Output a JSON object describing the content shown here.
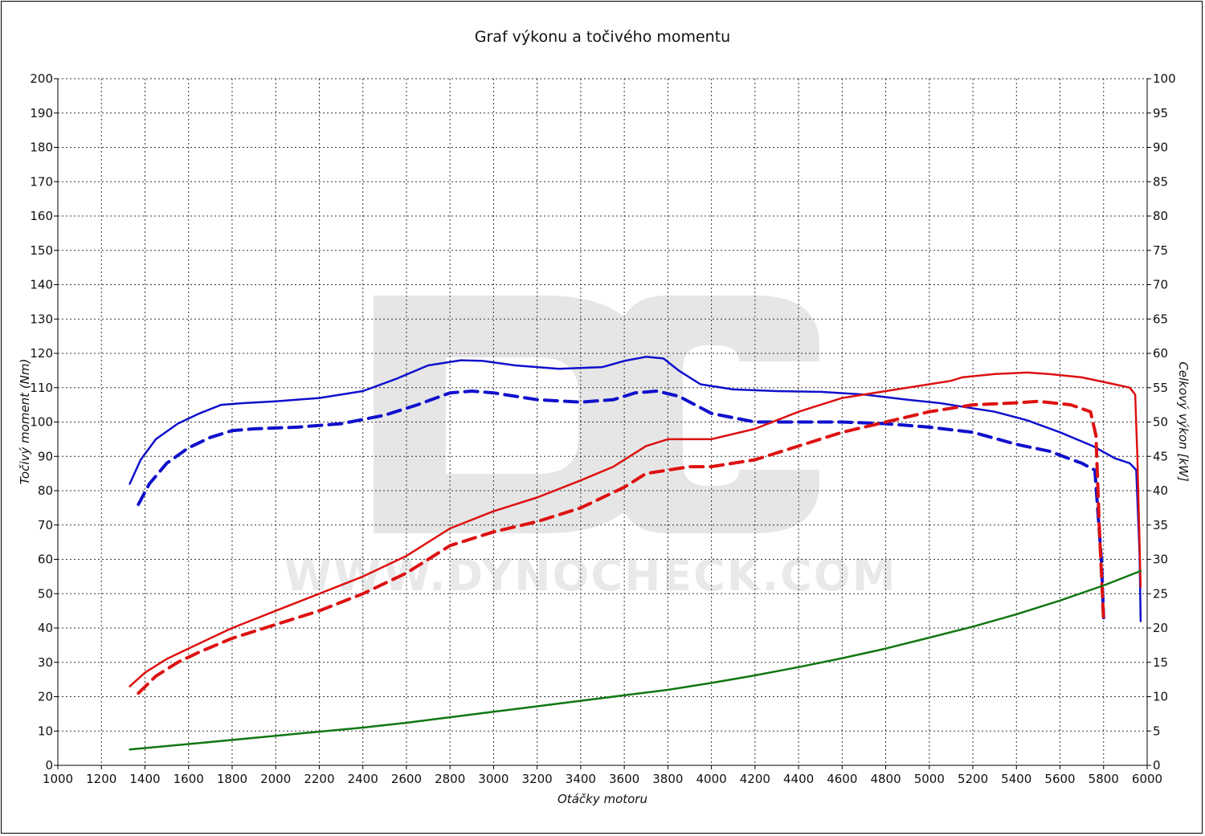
{
  "chart_data": {
    "type": "line",
    "title": "Graf výkonu a točivého momentu",
    "xlabel": "Otáčky motoru",
    "ylabel_left": "Točivý moment (Nm)",
    "ylabel_right": "Celkový výkon [kW]",
    "watermark": {
      "logo": "DC",
      "text": "WWW.DYNOCHECK.COM"
    },
    "xlim": [
      1000,
      6000
    ],
    "ylim_left": [
      0,
      200
    ],
    "ylim_right": [
      0,
      100
    ],
    "x_ticks": [
      1000,
      1200,
      1400,
      1600,
      1800,
      2000,
      2200,
      2400,
      2600,
      2800,
      3000,
      3200,
      3400,
      3600,
      3800,
      4000,
      4200,
      4400,
      4600,
      4800,
      5000,
      5200,
      5400,
      5600,
      5800,
      6000
    ],
    "y_left_ticks": [
      0,
      10,
      20,
      30,
      40,
      50,
      60,
      70,
      80,
      90,
      100,
      110,
      120,
      130,
      140,
      150,
      160,
      170,
      180,
      190,
      200
    ],
    "y_right_ticks": [
      0,
      5,
      10,
      15,
      20,
      25,
      30,
      35,
      40,
      45,
      50,
      55,
      60,
      65,
      70,
      75,
      80,
      85,
      90,
      95,
      100
    ],
    "grid": true,
    "colors": {
      "torque": "#1010cc",
      "power": "#dd1111",
      "loss": "#117711"
    },
    "series": [
      {
        "key": "torque_tuned",
        "axis": "left",
        "style": "solid",
        "color": "#1010cc",
        "x": [
          1330,
          1380,
          1450,
          1550,
          1650,
          1750,
          1850,
          2000,
          2200,
          2400,
          2550,
          2700,
          2850,
          2950,
          3100,
          3300,
          3500,
          3600,
          3700,
          3780,
          3850,
          3950,
          4100,
          4300,
          4500,
          4700,
          4900,
          5050,
          5150,
          5300,
          5450,
          5600,
          5750,
          5850,
          5920,
          5950,
          5965,
          5970
        ],
        "y": [
          82,
          89,
          95,
          99.5,
          102.5,
          105,
          105.5,
          106,
          107,
          109,
          112.5,
          116.5,
          118,
          117.8,
          116.5,
          115.5,
          116,
          117.8,
          119,
          118.5,
          115,
          111,
          109.5,
          109,
          108.8,
          108,
          106.5,
          105.5,
          104.5,
          103,
          100.5,
          97,
          93,
          89.5,
          88,
          86,
          62,
          42
        ]
      },
      {
        "key": "torque_stock",
        "axis": "left",
        "style": "dashed",
        "color": "#1010cc",
        "x": [
          1370,
          1420,
          1500,
          1600,
          1700,
          1800,
          1900,
          2100,
          2300,
          2500,
          2650,
          2800,
          2900,
          3000,
          3200,
          3400,
          3550,
          3650,
          3750,
          3850,
          4000,
          4200,
          4400,
          4600,
          4800,
          5000,
          5200,
          5400,
          5550,
          5700,
          5760,
          5790,
          5800
        ],
        "y": [
          76,
          82,
          88,
          92.5,
          95.5,
          97.5,
          98,
          98.5,
          99.5,
          102,
          105,
          108.5,
          109,
          108.5,
          106.5,
          105.8,
          106.5,
          108.5,
          109,
          107.5,
          102.5,
          100,
          100,
          100,
          99.5,
          98.5,
          97,
          93.5,
          91.5,
          88,
          86,
          60,
          43
        ]
      },
      {
        "key": "power_tuned",
        "axis": "right",
        "style": "solid",
        "color": "#dd1111",
        "x": [
          1330,
          1400,
          1500,
          1600,
          1700,
          1800,
          2000,
          2200,
          2400,
          2600,
          2800,
          3000,
          3200,
          3400,
          3550,
          3700,
          3800,
          4000,
          4200,
          4400,
          4600,
          4800,
          5000,
          5100,
          5150,
          5300,
          5450,
          5550,
          5700,
          5850,
          5920,
          5945,
          5955,
          5970
        ],
        "y": [
          11.5,
          13.5,
          15.5,
          17,
          18.5,
          20,
          22.5,
          25,
          27.5,
          30.5,
          34.5,
          37,
          39,
          41.5,
          43.5,
          46.5,
          47.5,
          47.5,
          49,
          51.5,
          53.5,
          54.5,
          55.5,
          56,
          56.5,
          57,
          57.2,
          57,
          56.5,
          55.5,
          55,
          54,
          45,
          26
        ]
      },
      {
        "key": "power_stock",
        "axis": "right",
        "style": "dashed",
        "color": "#dd1111",
        "x": [
          1370,
          1450,
          1550,
          1650,
          1800,
          2000,
          2200,
          2400,
          2600,
          2800,
          3000,
          3200,
          3400,
          3600,
          3700,
          3800,
          3900,
          4000,
          4200,
          4400,
          4600,
          4800,
          5000,
          5200,
          5400,
          5500,
          5650,
          5740,
          5765,
          5780,
          5800
        ],
        "y": [
          10.5,
          13,
          15,
          16.5,
          18.5,
          20.5,
          22.5,
          25,
          28,
          32,
          34,
          35.5,
          37.5,
          40.5,
          42.5,
          43,
          43.5,
          43.5,
          44.5,
          46.5,
          48.5,
          50,
          51.5,
          52.5,
          52.8,
          53,
          52.5,
          51.5,
          48,
          35,
          21
        ]
      },
      {
        "key": "power_loss",
        "axis": "right",
        "style": "solid",
        "color": "#117711",
        "x": [
          1330,
          1600,
          1800,
          2000,
          2200,
          2400,
          2600,
          2800,
          3000,
          3200,
          3400,
          3600,
          3800,
          4000,
          4200,
          4400,
          4600,
          4800,
          5000,
          5200,
          5400,
          5600,
          5800,
          5970
        ],
        "y": [
          2.3,
          3.1,
          3.7,
          4.3,
          4.9,
          5.5,
          6.2,
          7,
          7.8,
          8.6,
          9.4,
          10.2,
          11.0,
          12.0,
          13.1,
          14.3,
          15.6,
          17.0,
          18.6,
          20.2,
          22.0,
          24.0,
          26.2,
          28.3
        ]
      }
    ]
  }
}
